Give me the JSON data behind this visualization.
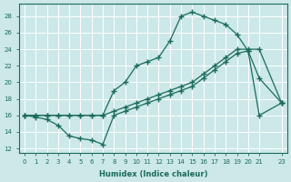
{
  "xlabel": "Humidex (Indice chaleur)",
  "bg_color": "#cce8e8",
  "grid_color": "#b0d4d4",
  "line_color": "#1a6b5a",
  "line1_x": [
    0,
    1,
    2,
    3,
    4,
    5,
    6,
    7,
    8,
    9,
    10,
    11,
    12,
    13,
    14,
    15,
    16,
    17,
    18,
    19,
    20,
    21,
    23
  ],
  "line1_y": [
    16,
    16,
    16,
    16,
    16,
    16,
    16,
    16,
    19,
    20,
    22,
    22.5,
    23,
    25,
    28,
    28.5,
    28,
    27.5,
    27,
    25.8,
    23.8,
    20.5,
    17.5
  ],
  "line2_x": [
    0,
    1,
    2,
    3,
    4,
    5,
    6,
    7,
    8,
    9,
    10,
    11,
    12,
    13,
    14,
    15,
    16,
    17,
    18,
    19,
    20,
    21,
    23
  ],
  "line2_y": [
    16,
    15.8,
    15.5,
    14.8,
    13.5,
    13.2,
    13.0,
    12.5,
    16,
    16.5,
    17,
    17.5,
    18,
    18.5,
    19,
    19.5,
    20.5,
    21.5,
    22.5,
    23.5,
    23.8,
    16.0,
    17.5
  ],
  "line3_x": [
    0,
    1,
    2,
    3,
    4,
    5,
    6,
    7,
    8,
    9,
    10,
    11,
    12,
    13,
    14,
    15,
    16,
    17,
    18,
    19,
    20,
    21,
    23
  ],
  "line3_y": [
    16,
    16,
    16,
    16,
    16,
    16,
    16,
    16,
    16.5,
    17,
    17.5,
    18,
    18.5,
    19,
    19.5,
    20,
    21,
    22,
    23,
    24,
    24,
    24,
    17.5
  ],
  "xlim": [
    -0.5,
    23.5
  ],
  "ylim": [
    11.5,
    29.5
  ],
  "xticks": [
    0,
    1,
    2,
    3,
    4,
    5,
    6,
    7,
    8,
    9,
    10,
    11,
    12,
    13,
    14,
    15,
    16,
    17,
    18,
    19,
    20,
    21,
    23
  ],
  "xtick_labels": [
    "0",
    "1",
    "2",
    "3",
    "4",
    "5",
    "6",
    "7",
    "8",
    "9",
    "10",
    "11",
    "12",
    "13",
    "14",
    "15",
    "16",
    "17",
    "18",
    "19",
    "20",
    "21",
    "23"
  ],
  "yticks": [
    12,
    14,
    16,
    18,
    20,
    22,
    24,
    26,
    28
  ]
}
